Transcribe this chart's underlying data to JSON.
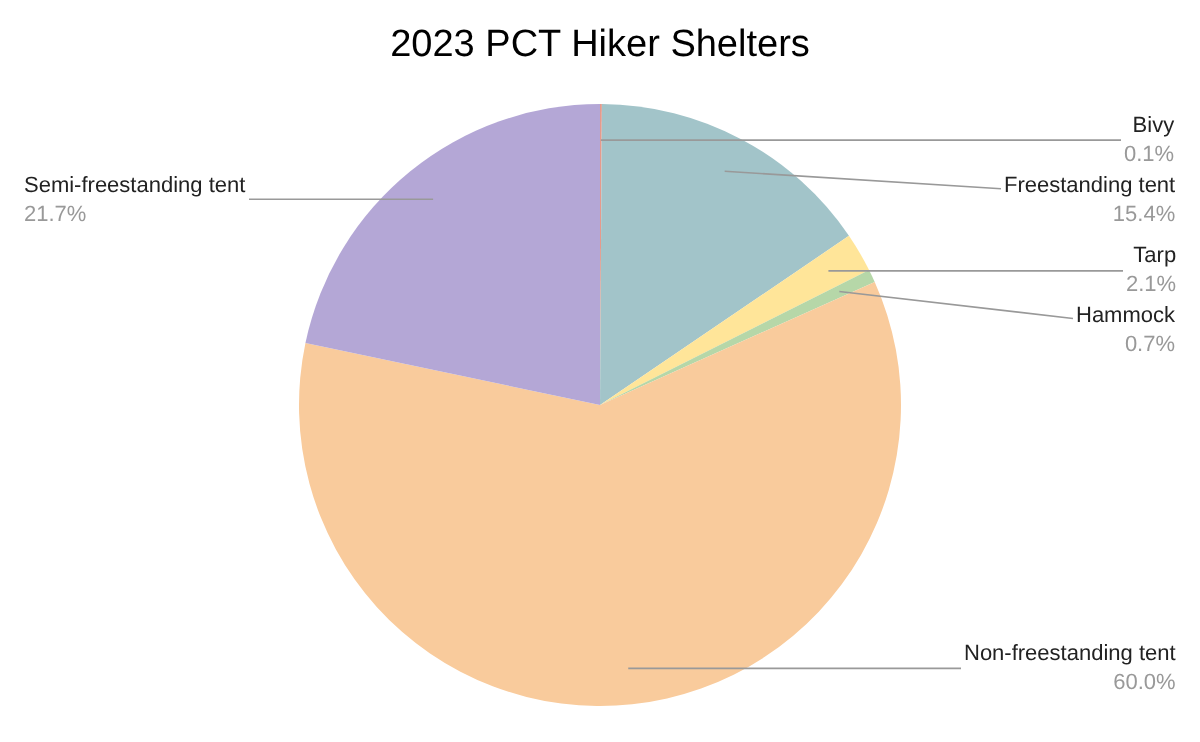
{
  "chart_data": {
    "type": "pie",
    "title": "2023 PCT Hiker Shelters",
    "categories": [
      "Bivy",
      "Freestanding tent",
      "Tarp",
      "Hammock",
      "Non-freestanding tent",
      "Semi-freestanding tent"
    ],
    "values": [
      0.1,
      15.4,
      2.1,
      0.7,
      60.0,
      21.7
    ],
    "value_labels": [
      "0.1%",
      "15.4%",
      "2.1%",
      "0.7%",
      "60.0%",
      "21.7%"
    ],
    "colors": [
      "#e69a8c",
      "#a2c4c9",
      "#ffe599",
      "#b6d7a8",
      "#f9cb9c",
      "#b4a7d6"
    ],
    "legend": false
  }
}
